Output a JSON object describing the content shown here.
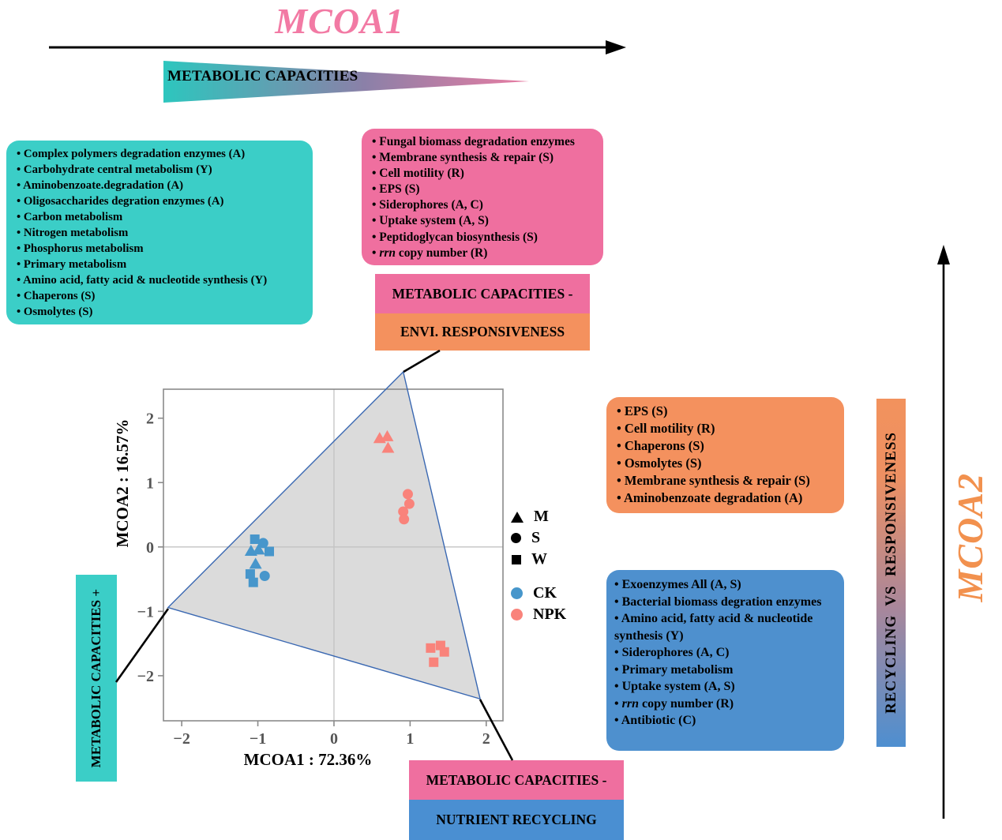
{
  "header": {
    "title": "MCOA1",
    "wedge_label": "METABOLIC CAPACITIES"
  },
  "boxes": {
    "teal_list": {
      "items": [
        "Complex polymers degradation enzymes (A)",
        "Carbohydrate central metabolism (Y)",
        "Aminobenzoate.degradation (A)",
        "Oligosaccharides degration enzymes (A)",
        "Carbon metabolism",
        "Nitrogen metabolism",
        "Phosphorus metabolism",
        "Primary metabolism",
        "Amino acid, fatty acid & nucleotide synthesis (Y)",
        "Chaperons (S)",
        "Osmolytes (S)"
      ]
    },
    "pink_list": {
      "items": [
        "Fungal biomass degradation enzymes",
        "Membrane synthesis & repair (S)",
        "Cell motility (R)",
        "EPS (S)",
        "Siderophores (A, C)",
        "Uptake system (A, S)",
        "Peptidoglycan biosynthesis (S)",
        "*rrn* copy number (R)"
      ]
    },
    "orange_list": {
      "items": [
        "EPS (S)",
        "Cell motility (R)",
        "Chaperons (S)",
        "Osmolytes (S)",
        "Membrane synthesis & repair (S)",
        "Aminobenzoate degradation (A)"
      ]
    },
    "blue_list": {
      "items": [
        "Exoenzymes All (A, S)",
        "Bacterial biomass degration enzymes",
        "Amino acid, fatty acid & nucleotide synthesis (Y)",
        "Siderophores (A, C)",
        "Primary metabolism",
        "Uptake system (A, S)",
        "*rrn* copy number (R)",
        "Antibiotic (C)"
      ]
    },
    "cap_minus_env": {
      "line1": "METABOLIC CAPACITIES -",
      "line2": "ENVI. RESPONSIVENESS"
    },
    "cap_minus_nutrient": {
      "line1": "METABOLIC CAPACITIES -",
      "line2": "NUTRIENT RECYCLING"
    },
    "cap_plus_vertical": "METABOLIC CAPACITIES +",
    "recycling_bar_label": "RECYCLING  VS  RESPONSIVENESS",
    "mcoa2_side_label": "MCOA2"
  },
  "colors": {
    "teal": "#3BCEC7",
    "pink": "#EF6F9F",
    "orange": "#F4915E",
    "blue": "#4E90CE",
    "title_pink": "#F27AA4",
    "mcoa2_orange": "#F2914E",
    "wedge_gradient": [
      "#2DC6BE",
      "#8B80A8",
      "#E87CA2"
    ],
    "bar_gradient_top": "#F2925D",
    "bar_gradient_bottom": "#4E8FD0"
  },
  "chart_data": {
    "type": "scatter",
    "xlabel": "MCOA1 :  72.36%",
    "ylabel": "MCOA2 :  16.57%",
    "xlim": [
      -2.24,
      2.22
    ],
    "ylim": [
      -2.7,
      2.45
    ],
    "x_ticks": [
      {
        "v": -2,
        "label": "−2"
      },
      {
        "v": -1,
        "label": "−1"
      },
      {
        "v": 0,
        "label": "0"
      },
      {
        "v": 1,
        "label": "1"
      },
      {
        "v": 2,
        "label": "2"
      }
    ],
    "y_ticks": [
      {
        "v": 2,
        "label": "2"
      },
      {
        "v": 1,
        "label": "1"
      },
      {
        "v": 0,
        "label": "0"
      },
      {
        "v": -1,
        "label": "−1"
      },
      {
        "v": -2,
        "label": "−2"
      }
    ],
    "grid": "zero-lines-only",
    "hull": [
      [
        0.91,
        2.72
      ],
      [
        1.92,
        -2.36
      ],
      [
        -2.18,
        -0.94
      ]
    ],
    "hull_fill": "#DBDBDB",
    "hull_stroke": "#3A68B2",
    "legend_shapes": [
      {
        "label": "M",
        "shape": "triangle"
      },
      {
        "label": "S",
        "shape": "circle"
      },
      {
        "label": "W",
        "shape": "square"
      }
    ],
    "series": [
      {
        "name": "CK",
        "color": "#4796CB",
        "points": [
          {
            "x": -1.04,
            "y": 0.12,
            "shape": "square"
          },
          {
            "x": -0.93,
            "y": 0.06,
            "shape": "circle"
          },
          {
            "x": -1.09,
            "y": -0.07,
            "shape": "triangle"
          },
          {
            "x": -0.99,
            "y": -0.05,
            "shape": "triangle"
          },
          {
            "x": -0.85,
            "y": -0.07,
            "shape": "square"
          },
          {
            "x": -1.03,
            "y": -0.27,
            "shape": "triangle"
          },
          {
            "x": -1.1,
            "y": -0.42,
            "shape": "square"
          },
          {
            "x": -0.91,
            "y": -0.45,
            "shape": "circle"
          },
          {
            "x": -1.06,
            "y": -0.55,
            "shape": "square"
          }
        ]
      },
      {
        "name": "NPK",
        "color": "#F9837B",
        "points": [
          {
            "x": 0.6,
            "y": 1.68,
            "shape": "triangle"
          },
          {
            "x": 0.7,
            "y": 1.71,
            "shape": "triangle"
          },
          {
            "x": 0.71,
            "y": 1.53,
            "shape": "triangle"
          },
          {
            "x": 0.97,
            "y": 0.82,
            "shape": "circle"
          },
          {
            "x": 0.99,
            "y": 0.67,
            "shape": "circle"
          },
          {
            "x": 0.91,
            "y": 0.55,
            "shape": "circle"
          },
          {
            "x": 0.92,
            "y": 0.43,
            "shape": "circle"
          },
          {
            "x": 1.27,
            "y": -1.57,
            "shape": "square"
          },
          {
            "x": 1.4,
            "y": -1.53,
            "shape": "square"
          },
          {
            "x": 1.45,
            "y": -1.63,
            "shape": "square"
          },
          {
            "x": 1.31,
            "y": -1.79,
            "shape": "square"
          }
        ]
      }
    ]
  }
}
